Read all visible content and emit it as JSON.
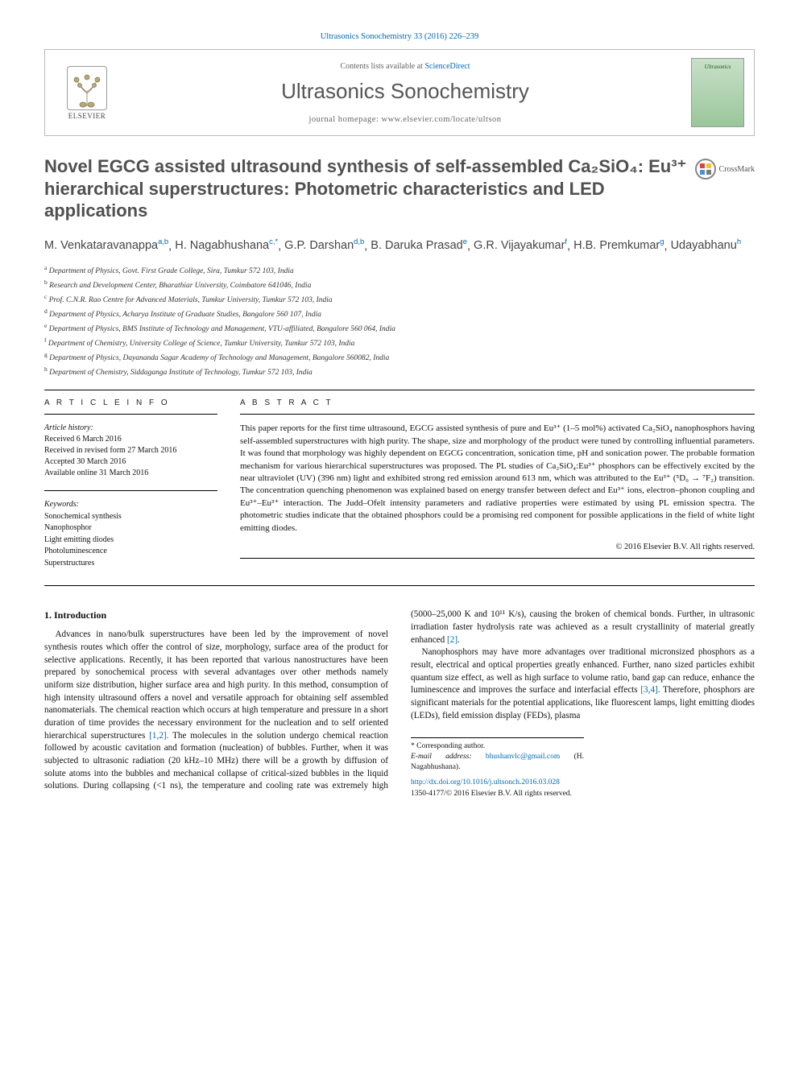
{
  "citation": "Ultrasonics Sonochemistry 33 (2016) 226–239",
  "header": {
    "contents_prefix": "Contents lists available at ",
    "contents_link": "ScienceDirect",
    "journal": "Ultrasonics Sonochemistry",
    "homepage_prefix": "journal homepage: ",
    "homepage_url": "www.elsevier.com/locate/ultson",
    "publisher": "ELSEVIER",
    "cover_text": "Ultrasonics"
  },
  "crossmark": "CrossMark",
  "title_html": "Novel EGCG assisted ultrasound synthesis of self-assembled Ca₂SiO₄: Eu³⁺ hierarchical superstructures: Photometric characteristics and LED applications",
  "authors": [
    {
      "name": "M. Venkataravanappa",
      "aff": "a,b"
    },
    {
      "name": "H. Nagabhushana",
      "aff": "c,*"
    },
    {
      "name": "G.P. Darshan",
      "aff": "d,b"
    },
    {
      "name": "B. Daruka Prasad",
      "aff": "e"
    },
    {
      "name": "G.R. Vijayakumar",
      "aff": "f"
    },
    {
      "name": "H.B. Premkumar",
      "aff": "g"
    },
    {
      "name": "Udayabhanu",
      "aff": "h"
    }
  ],
  "affiliations": [
    {
      "sup": "a",
      "text": "Department of Physics, Govt. First Grade College, Sira, Tumkur 572 103, India"
    },
    {
      "sup": "b",
      "text": "Research and Development Center, Bharathiar University, Coimbatore 641046, India"
    },
    {
      "sup": "c",
      "text": "Prof. C.N.R. Rao Centre for Advanced Materials, Tumkur University, Tumkur 572 103, India"
    },
    {
      "sup": "d",
      "text": "Department of Physics, Acharya Institute of Graduate Studies, Bangalore 560 107, India"
    },
    {
      "sup": "e",
      "text": "Department of Physics, BMS Institute of Technology and Management, VTU-affiliated, Bangalore 560 064, India"
    },
    {
      "sup": "f",
      "text": "Department of Chemistry, University College of Science, Tumkur University, Tumkur 572 103, India"
    },
    {
      "sup": "g",
      "text": "Department of Physics, Dayananda Sagar Academy of Technology and Management, Bangalore 560082, India"
    },
    {
      "sup": "h",
      "text": "Department of Chemistry, Siddaganga Institute of Technology, Tumkur 572 103, India"
    }
  ],
  "info": {
    "label": "A R T I C L E   I N F O",
    "history_label": "Article history:",
    "history": [
      "Received 6 March 2016",
      "Received in revised form 27 March 2016",
      "Accepted 30 March 2016",
      "Available online 31 March 2016"
    ],
    "keywords_label": "Keywords:",
    "keywords": [
      "Sonochemical synthesis",
      "Nanophosphor",
      "Light emitting diodes",
      "Photoluminescence",
      "Superstructures"
    ]
  },
  "abstract": {
    "label": "A B S T R A C T",
    "text": "This paper reports for the first time ultrasound, EGCG assisted synthesis of pure and Eu³⁺ (1–5 mol%) activated Ca₂SiO₄ nanophosphors having self-assembled superstructures with high purity. The shape, size and morphology of the product were tuned by controlling influential parameters. It was found that morphology was highly dependent on EGCG concentration, sonication time, pH and sonication power. The probable formation mechanism for various hierarchical superstructures was proposed. The PL studies of Ca₂SiO₄:Eu³⁺ phosphors can be effectively excited by the near ultraviolet (UV) (396 nm) light and exhibited strong red emission around 613 nm, which was attributed to the Eu³⁺ (⁵D₀ → ⁷F₂) transition. The concentration quenching phenomenon was explained based on energy transfer between defect and Eu³⁺ ions, electron–phonon coupling and Eu³⁺–Eu³⁺ interaction. The Judd–Ofelt intensity parameters and radiative properties were estimated by using PL emission spectra. The photometric studies indicate that the obtained phosphors could be a promising red component for possible applications in the field of white light emitting diodes.",
    "copyright": "© 2016 Elsevier B.V. All rights reserved."
  },
  "body": {
    "section_title": "1. Introduction",
    "p1": "Advances in nano/bulk superstructures have been led by the improvement of novel synthesis routes which offer the control of size, morphology, surface area of the product for selective applications. Recently, it has been reported that various nanostructures have been prepared by sonochemical process with several advantages over other methods namely uniform size distribution, higher surface area and high purity. In this method, consumption of high intensity ultrasound offers a novel and versatile approach for obtaining self assembled nanomaterials. The chemical reaction which occurs at high temperature and pressure in a short duration of time provides the necessary environment for the nucleation and to self oriented hierarchical superstructures ",
    "p1_ref": "[1,2]",
    "p1_tail": ". The molecules in",
    "p2": "the solution undergo chemical reaction followed by acoustic cavitation and formation (nucleation) of bubbles. Further, when it was subjected to ultrasonic radiation (20 kHz–10 MHz) there will be a growth by diffusion of solute atoms into the bubbles and mechanical collapse of critical-sized bubbles in the liquid solutions. During collapsing (<1 ns), the temperature and cooling rate was extremely high (5000–25,000 K and 10¹¹ K/s), causing the broken of chemical bonds. Further, in ultrasonic irradiation faster hydrolysis rate was achieved as a result crystallinity of material greatly enhanced ",
    "p2_ref": "[2]",
    "p2_tail": ".",
    "p3": "Nanophosphors may have more advantages over traditional micronsized phosphors as a result, electrical and optical properties greatly enhanced. Further, nano sized particles exhibit quantum size effect, as well as high surface to volume ratio, band gap can reduce, enhance the luminescence and improves the surface and interfacial effects ",
    "p3_ref": "[3,4]",
    "p3_tail": ". Therefore, phosphors are significant materials for the potential applications, like fluorescent lamps, light emitting diodes (LEDs), field emission display (FEDs), plasma"
  },
  "footer": {
    "corr_label": "* Corresponding author.",
    "email_label": "E-mail address: ",
    "email": "bhushanvlc@gmail.com",
    "email_name": " (H. Nagabhushana).",
    "doi_url": "http://dx.doi.org/10.1016/j.ultsonch.2016.03.028",
    "issn_line": "1350-4177/© 2016 Elsevier B.V. All rights reserved."
  }
}
